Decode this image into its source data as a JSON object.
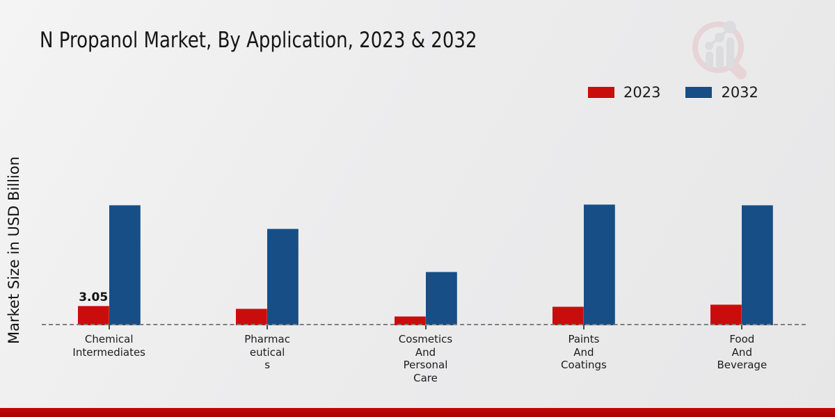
{
  "title": "N Propanol Market, By Application, 2023 & 2032",
  "y_axis_label": "Market Size in USD Billion",
  "legend": {
    "items": [
      {
        "label": "2023",
        "color": "#c90d0d"
      },
      {
        "label": "2032",
        "color": "#174e85"
      }
    ],
    "position": "top-right"
  },
  "watermark_icon": "magnifier-bar-chart-logo",
  "colors": {
    "series_2023": "#c90d0d",
    "series_2032": "#174e85",
    "baseline": "#7e7e7e",
    "background": "#ececed",
    "footer_bar": "#b90606"
  },
  "chart_data": {
    "type": "bar",
    "title": "N Propanol Market, By Application, 2023 & 2032",
    "xlabel": "",
    "ylabel": "Market Size in USD Billion",
    "ylim": [
      0,
      20
    ],
    "grid": false,
    "legend_position": "top-right",
    "baseline_style": "dashed",
    "categories": [
      "Chemical Intermediates",
      "Pharmaceuticals",
      "Cosmetics And Personal Care",
      "Paints And Coatings",
      "Food And Beverage"
    ],
    "categories_display": [
      "Chemical\nIntermediates",
      "Pharmac\neutical\ns",
      "Cosmetics\nAnd\nPersonal\nCare",
      "Paints\nAnd\nCoatings",
      "Food\nAnd\nBeverage"
    ],
    "series": [
      {
        "name": "2023",
        "color": "#c90d0d",
        "values": [
          3.05,
          2.6,
          1.4,
          2.95,
          3.25
        ],
        "value_labels": [
          "3.05",
          "",
          "",
          "",
          ""
        ]
      },
      {
        "name": "2032",
        "color": "#174e85",
        "values": [
          18.8,
          15.2,
          8.4,
          19.0,
          18.8
        ],
        "value_labels": [
          "",
          "",
          "",
          "",
          ""
        ]
      }
    ]
  }
}
